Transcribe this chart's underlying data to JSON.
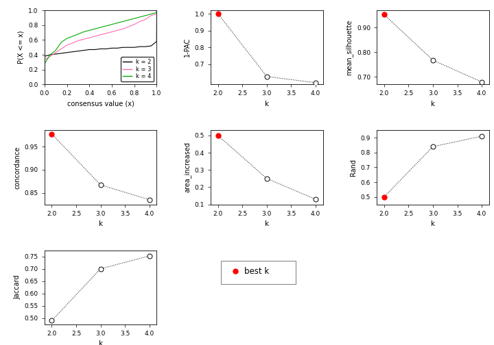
{
  "ecdf": {
    "k2": {
      "x": [
        0.0,
        0.001,
        0.05,
        0.1,
        0.15,
        0.2,
        0.25,
        0.3,
        0.35,
        0.4,
        0.45,
        0.5,
        0.55,
        0.6,
        0.65,
        0.7,
        0.75,
        0.8,
        0.85,
        0.9,
        0.95,
        0.999,
        1.0
      ],
      "y": [
        0.0,
        0.38,
        0.4,
        0.41,
        0.42,
        0.43,
        0.44,
        0.45,
        0.46,
        0.47,
        0.47,
        0.48,
        0.48,
        0.49,
        0.49,
        0.5,
        0.5,
        0.5,
        0.51,
        0.51,
        0.52,
        0.58,
        1.0
      ],
      "color": "#000000"
    },
    "k3": {
      "x": [
        0.0,
        0.001,
        0.05,
        0.1,
        0.15,
        0.2,
        0.25,
        0.3,
        0.35,
        0.4,
        0.45,
        0.5,
        0.55,
        0.6,
        0.65,
        0.7,
        0.75,
        0.8,
        0.85,
        0.9,
        0.95,
        0.999,
        1.0
      ],
      "y": [
        0.0,
        0.33,
        0.38,
        0.43,
        0.48,
        0.53,
        0.56,
        0.59,
        0.61,
        0.63,
        0.65,
        0.67,
        0.69,
        0.71,
        0.73,
        0.75,
        0.78,
        0.81,
        0.85,
        0.88,
        0.93,
        0.95,
        1.0
      ],
      "color": "#FF69B4"
    },
    "k4": {
      "x": [
        0.0,
        0.001,
        0.05,
        0.1,
        0.15,
        0.2,
        0.25,
        0.3,
        0.35,
        0.4,
        0.45,
        0.5,
        0.55,
        0.6,
        0.65,
        0.7,
        0.75,
        0.8,
        0.85,
        0.9,
        0.95,
        0.999,
        1.0
      ],
      "y": [
        0.0,
        0.28,
        0.4,
        0.46,
        0.57,
        0.62,
        0.65,
        0.68,
        0.71,
        0.73,
        0.75,
        0.77,
        0.79,
        0.81,
        0.83,
        0.85,
        0.87,
        0.89,
        0.91,
        0.93,
        0.95,
        0.97,
        1.0
      ],
      "color": "#00AA00"
    }
  },
  "pac": {
    "k": [
      2.0,
      3.0,
      4.0
    ],
    "v": [
      1.0,
      0.627,
      0.59
    ],
    "best": [
      0
    ],
    "ylim": [
      0.58,
      1.02
    ],
    "yticks": [
      0.7,
      0.8,
      0.9,
      1.0
    ],
    "ytick_labels": [
      "0.7",
      "0.8",
      "0.9",
      "1.0"
    ],
    "ylabel": "1-PAC"
  },
  "mean_sil": {
    "k": [
      2.0,
      3.0,
      4.0
    ],
    "v": [
      0.953,
      0.768,
      0.68
    ],
    "best": [
      0
    ],
    "ylim": [
      0.67,
      0.97
    ],
    "yticks": [
      0.7,
      0.8,
      0.9
    ],
    "ytick_labels": [
      "0.70",
      "0.80",
      "0.90"
    ],
    "ylabel": "mean_silhouette"
  },
  "concordance": {
    "k": [
      2.0,
      3.0,
      4.0
    ],
    "v": [
      0.977,
      0.867,
      0.835
    ],
    "best": [
      0
    ],
    "ylim": [
      0.825,
      0.985
    ],
    "yticks": [
      0.85,
      0.9,
      0.95
    ],
    "ytick_labels": [
      "0.85",
      "0.90",
      "0.95"
    ],
    "ylabel": "concordance"
  },
  "area_increased": {
    "k": [
      2.0,
      3.0,
      4.0
    ],
    "v": [
      0.5,
      0.25,
      0.13
    ],
    "best": [
      0
    ],
    "ylim": [
      0.1,
      0.53
    ],
    "yticks": [
      0.1,
      0.2,
      0.3,
      0.4,
      0.5
    ],
    "ytick_labels": [
      "0.1",
      "0.2",
      "0.3",
      "0.4",
      "0.5"
    ],
    "ylabel": "area_increased"
  },
  "rand": {
    "k": [
      2.0,
      3.0,
      4.0
    ],
    "v": [
      0.5,
      0.84,
      0.91
    ],
    "best": [
      0
    ],
    "ylim": [
      0.45,
      0.95
    ],
    "yticks": [
      0.5,
      0.6,
      0.7,
      0.8,
      0.9
    ],
    "ytick_labels": [
      "0.5",
      "0.6",
      "0.7",
      "0.8",
      "0.9"
    ],
    "ylabel": "Rand"
  },
  "jaccard": {
    "k": [
      2.0,
      3.0,
      4.0
    ],
    "v": [
      0.49,
      0.7,
      0.752
    ],
    "best": [],
    "ylim": [
      0.475,
      0.775
    ],
    "yticks": [
      0.5,
      0.55,
      0.6,
      0.65,
      0.7,
      0.75
    ],
    "ytick_labels": [
      "0.50",
      "0.55",
      "0.60",
      "0.65",
      "0.70",
      "0.75"
    ],
    "ylabel": "Jaccard"
  },
  "bg_color": "#FFFFFF",
  "line_color": "#000000",
  "best_dot_color": "#FF0000",
  "open_dot_color": "#FFFFFF",
  "dot_edge_color": "#000000"
}
